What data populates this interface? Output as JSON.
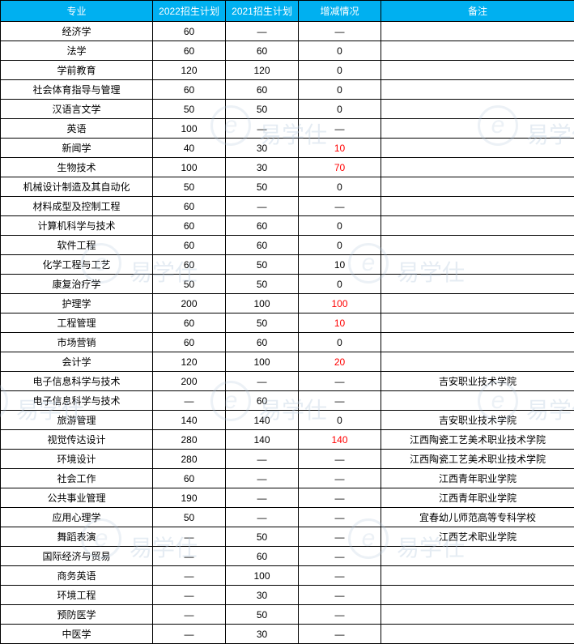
{
  "table": {
    "headers": [
      "专业",
      "2022招生计划",
      "2021招生计划",
      "增减情况",
      "备注"
    ],
    "header_bg": "#00b0f0",
    "header_color": "#ffffff",
    "border_color": "#000000",
    "highlight_color": "#ff0000",
    "text_color": "#000000",
    "rows": [
      {
        "major": "经济学",
        "y2022": "60",
        "y2021": "—",
        "change": "—",
        "change_red": false,
        "note": ""
      },
      {
        "major": "法学",
        "y2022": "60",
        "y2021": "60",
        "change": "0",
        "change_red": false,
        "note": ""
      },
      {
        "major": "学前教育",
        "y2022": "120",
        "y2021": "120",
        "change": "0",
        "change_red": false,
        "note": ""
      },
      {
        "major": "社会体育指导与管理",
        "y2022": "60",
        "y2021": "60",
        "change": "0",
        "change_red": false,
        "note": ""
      },
      {
        "major": "汉语言文学",
        "y2022": "50",
        "y2021": "50",
        "change": "0",
        "change_red": false,
        "note": ""
      },
      {
        "major": "英语",
        "y2022": "100",
        "y2021": "—",
        "change": "—",
        "change_red": false,
        "note": ""
      },
      {
        "major": "新闻学",
        "y2022": "40",
        "y2021": "30",
        "change": "10",
        "change_red": true,
        "note": ""
      },
      {
        "major": "生物技术",
        "y2022": "100",
        "y2021": "30",
        "change": "70",
        "change_red": true,
        "note": ""
      },
      {
        "major": "机械设计制造及其自动化",
        "y2022": "50",
        "y2021": "50",
        "change": "0",
        "change_red": false,
        "note": ""
      },
      {
        "major": "材料成型及控制工程",
        "y2022": "60",
        "y2021": "—",
        "change": "—",
        "change_red": false,
        "note": ""
      },
      {
        "major": "计算机科学与技术",
        "y2022": "60",
        "y2021": "60",
        "change": "0",
        "change_red": false,
        "note": ""
      },
      {
        "major": "软件工程",
        "y2022": "60",
        "y2021": "60",
        "change": "0",
        "change_red": false,
        "note": ""
      },
      {
        "major": "化学工程与工艺",
        "y2022": "60",
        "y2021": "50",
        "change": "10",
        "change_red": false,
        "note": ""
      },
      {
        "major": "康复治疗学",
        "y2022": "50",
        "y2021": "50",
        "change": "0",
        "change_red": false,
        "note": ""
      },
      {
        "major": "护理学",
        "y2022": "200",
        "y2021": "100",
        "change": "100",
        "change_red": true,
        "note": ""
      },
      {
        "major": "工程管理",
        "y2022": "60",
        "y2021": "50",
        "change": "10",
        "change_red": true,
        "note": ""
      },
      {
        "major": "市场营销",
        "y2022": "60",
        "y2021": "60",
        "change": "0",
        "change_red": false,
        "note": ""
      },
      {
        "major": "会计学",
        "y2022": "120",
        "y2021": "100",
        "change": "20",
        "change_red": true,
        "note": ""
      },
      {
        "major": "电子信息科学与技术",
        "y2022": "200",
        "y2021": "—",
        "change": "—",
        "change_red": false,
        "note": "吉安职业技术学院"
      },
      {
        "major": "电子信息科学与技术",
        "y2022": "—",
        "y2021": "60",
        "change": "—",
        "change_red": false,
        "note": ""
      },
      {
        "major": "旅游管理",
        "y2022": "140",
        "y2021": "140",
        "change": "0",
        "change_red": false,
        "note": "吉安职业技术学院"
      },
      {
        "major": "视觉传达设计",
        "y2022": "280",
        "y2021": "140",
        "change": "140",
        "change_red": true,
        "note": "江西陶瓷工艺美术职业技术学院"
      },
      {
        "major": "环境设计",
        "y2022": "280",
        "y2021": "—",
        "change": "—",
        "change_red": false,
        "note": "江西陶瓷工艺美术职业技术学院"
      },
      {
        "major": "社会工作",
        "y2022": "60",
        "y2021": "—",
        "change": "—",
        "change_red": false,
        "note": "江西青年职业学院"
      },
      {
        "major": "公共事业管理",
        "y2022": "190",
        "y2021": "—",
        "change": "—",
        "change_red": false,
        "note": "江西青年职业学院"
      },
      {
        "major": "应用心理学",
        "y2022": "50",
        "y2021": "—",
        "change": "—",
        "change_red": false,
        "note": "宜春幼儿师范高等专科学校"
      },
      {
        "major": "舞蹈表演",
        "y2022": "—",
        "y2021": "50",
        "change": "—",
        "change_red": false,
        "note": "江西艺术职业学院"
      },
      {
        "major": "国际经济与贸易",
        "y2022": "—",
        "y2021": "60",
        "change": "—",
        "change_red": false,
        "note": ""
      },
      {
        "major": "商务英语",
        "y2022": "—",
        "y2021": "100",
        "change": "—",
        "change_red": false,
        "note": ""
      },
      {
        "major": "环境工程",
        "y2022": "—",
        "y2021": "30",
        "change": "—",
        "change_red": false,
        "note": ""
      },
      {
        "major": "预防医学",
        "y2022": "—",
        "y2021": "50",
        "change": "—",
        "change_red": false,
        "note": ""
      },
      {
        "major": "中医学",
        "y2022": "—",
        "y2021": "30",
        "change": "—",
        "change_red": false,
        "note": ""
      }
    ]
  },
  "watermark": {
    "text": "易学仕",
    "color": "rgba(180, 200, 220, 0.35)"
  }
}
